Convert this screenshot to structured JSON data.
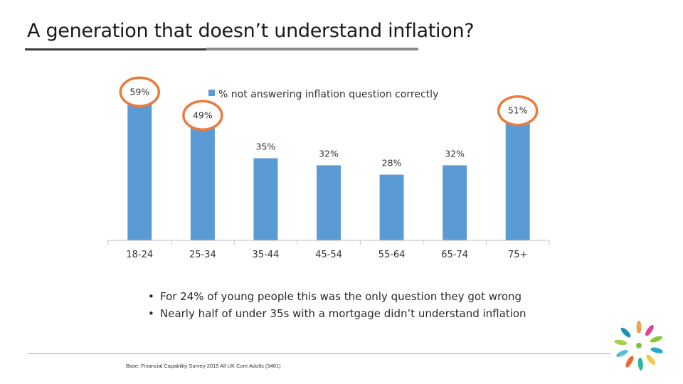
{
  "slide": {
    "title": "A generation that doesn’t understand inflation?"
  },
  "chart_data": {
    "type": "bar",
    "title": "",
    "xlabel": "",
    "ylabel": "",
    "categories": [
      "18-24",
      "25-34",
      "35-44",
      "45-54",
      "55-64",
      "65-74",
      "75+"
    ],
    "series": [
      {
        "name": "% not answering inflation question correctly",
        "values": [
          59,
          49,
          35,
          32,
          28,
          32,
          51
        ],
        "labels": [
          "59%",
          "49%",
          "35%",
          "32%",
          "28%",
          "32%",
          "51%"
        ]
      }
    ],
    "ylim": [
      0,
      60
    ],
    "grid": false,
    "legend_position": "top",
    "bar_color": "#5b9bd5",
    "highlight_color": "#e87d3e",
    "highlighted_categories": [
      "18-24",
      "25-34",
      "75+"
    ]
  },
  "bullets": [
    "For 24% of young people this was the only question they got wrong",
    "Nearly half of under 35s with a mortgage didn’t understand inflation"
  ],
  "footer": {
    "base_note": "Base: Financial Capability Survey 2015 All UK Core Adults (3461)"
  },
  "logo": {
    "icon": "pinwheel-logo-icon"
  }
}
